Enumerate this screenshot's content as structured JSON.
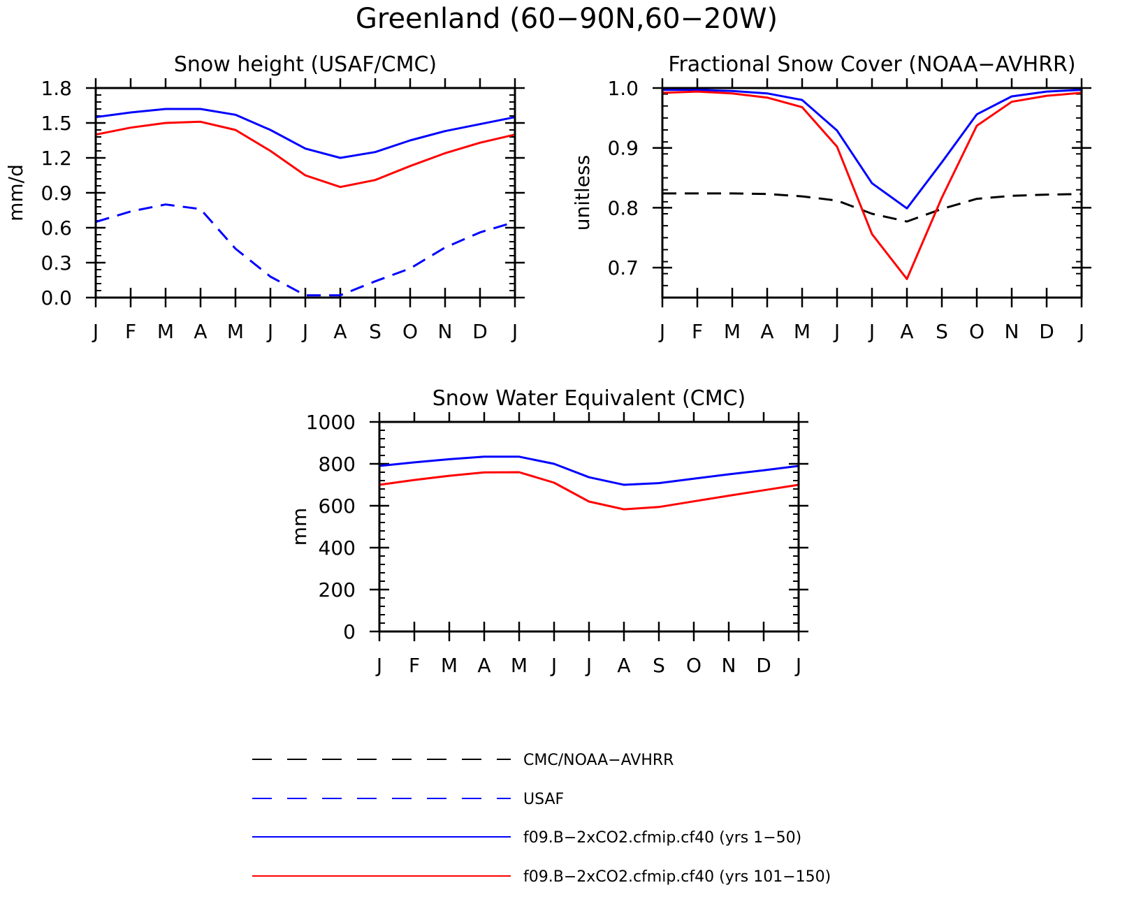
{
  "title": "Greenland (60−90N,60−20W)",
  "colors": {
    "obs_black": "#000000",
    "obs_blue": "#0000ff",
    "run1": "#0000ff",
    "run2": "#ff0000"
  },
  "legend": [
    {
      "label": "CMC/NOAA−AVHRR",
      "color": "#000000",
      "style": "dashed"
    },
    {
      "label": "USAF",
      "color": "#0000ff",
      "style": "dashed"
    },
    {
      "label": "f09.B−2xCO2.cfmip.cf40 (yrs 1−50)",
      "color": "#0000ff",
      "style": "solid"
    },
    {
      "label": "f09.B−2xCO2.cfmip.cf40 (yrs 101−150)",
      "color": "#ff0000",
      "style": "solid"
    }
  ],
  "chart_data": [
    {
      "type": "line",
      "title": "Snow height (USAF/CMC)",
      "ylabel": "mm/d",
      "xlabel": "",
      "categories": [
        "J",
        "F",
        "M",
        "A",
        "M",
        "J",
        "J",
        "A",
        "S",
        "O",
        "N",
        "D",
        "J"
      ],
      "ylim": [
        0,
        1.8
      ],
      "yticks": [
        "0.0",
        "0.3",
        "0.6",
        "0.9",
        "1.2",
        "1.5",
        "1.8"
      ],
      "series": [
        {
          "color": "#000000",
          "style": "solid",
          "values": [
            0,
            0,
            0,
            0,
            0,
            0,
            0,
            0,
            0,
            0,
            0,
            0,
            0
          ]
        },
        {
          "color": "#0000ff",
          "style": "dashed",
          "values": [
            0.65,
            0.74,
            0.8,
            0.76,
            0.42,
            0.18,
            0.02,
            0.02,
            0.14,
            0.25,
            0.43,
            0.56,
            0.65
          ]
        },
        {
          "color": "#0000ff",
          "style": "solid",
          "values": [
            1.55,
            1.59,
            1.62,
            1.62,
            1.57,
            1.44,
            1.28,
            1.2,
            1.25,
            1.35,
            1.43,
            1.49,
            1.55
          ]
        },
        {
          "color": "#ff0000",
          "style": "solid",
          "values": [
            1.4,
            1.46,
            1.5,
            1.51,
            1.44,
            1.26,
            1.05,
            0.95,
            1.01,
            1.13,
            1.24,
            1.33,
            1.4
          ]
        }
      ]
    },
    {
      "type": "line",
      "title": "Fractional Snow Cover (NOAA−AVHRR)",
      "ylabel": "unitless",
      "xlabel": "",
      "categories": [
        "J",
        "F",
        "M",
        "A",
        "M",
        "J",
        "J",
        "A",
        "S",
        "O",
        "N",
        "D",
        "J"
      ],
      "ylim": [
        0.65,
        1.0
      ],
      "yticks": [
        "0.7",
        "0.8",
        "0.9",
        "1.0"
      ],
      "series": [
        {
          "color": "#000000",
          "style": "dashed",
          "values": [
            0.824,
            0.824,
            0.824,
            0.823,
            0.819,
            0.812,
            0.79,
            0.777,
            0.798,
            0.815,
            0.82,
            0.822,
            0.823
          ]
        },
        {
          "color": "#0000ff",
          "style": "solid",
          "values": [
            0.997,
            0.997,
            0.995,
            0.991,
            0.98,
            0.929,
            0.841,
            0.799,
            0.876,
            0.956,
            0.986,
            0.994,
            0.997
          ]
        },
        {
          "color": "#ff0000",
          "style": "solid",
          "values": [
            0.992,
            0.994,
            0.991,
            0.984,
            0.968,
            0.902,
            0.756,
            0.681,
            0.817,
            0.937,
            0.977,
            0.987,
            0.992
          ]
        }
      ]
    },
    {
      "type": "line",
      "title": "Snow Water Equivalent (CMC)",
      "ylabel": "mm",
      "xlabel": "",
      "categories": [
        "J",
        "F",
        "M",
        "A",
        "M",
        "J",
        "J",
        "A",
        "S",
        "O",
        "N",
        "D",
        "J"
      ],
      "ylim": [
        0,
        1000
      ],
      "yticks": [
        "0",
        "200",
        "400",
        "600",
        "800",
        "1000"
      ],
      "series": [
        {
          "color": "#000000",
          "style": "solid",
          "values": [
            0,
            0,
            0,
            0,
            0,
            0,
            0,
            0,
            0,
            0,
            0,
            0,
            0
          ]
        },
        {
          "color": "#0000ff",
          "style": "solid",
          "values": [
            790,
            807,
            822,
            834,
            834,
            800,
            736,
            700,
            708,
            729,
            750,
            769,
            790
          ]
        },
        {
          "color": "#ff0000",
          "style": "solid",
          "values": [
            700,
            723,
            743,
            759,
            760,
            710,
            620,
            583,
            594,
            621,
            648,
            674,
            700
          ]
        }
      ]
    }
  ]
}
